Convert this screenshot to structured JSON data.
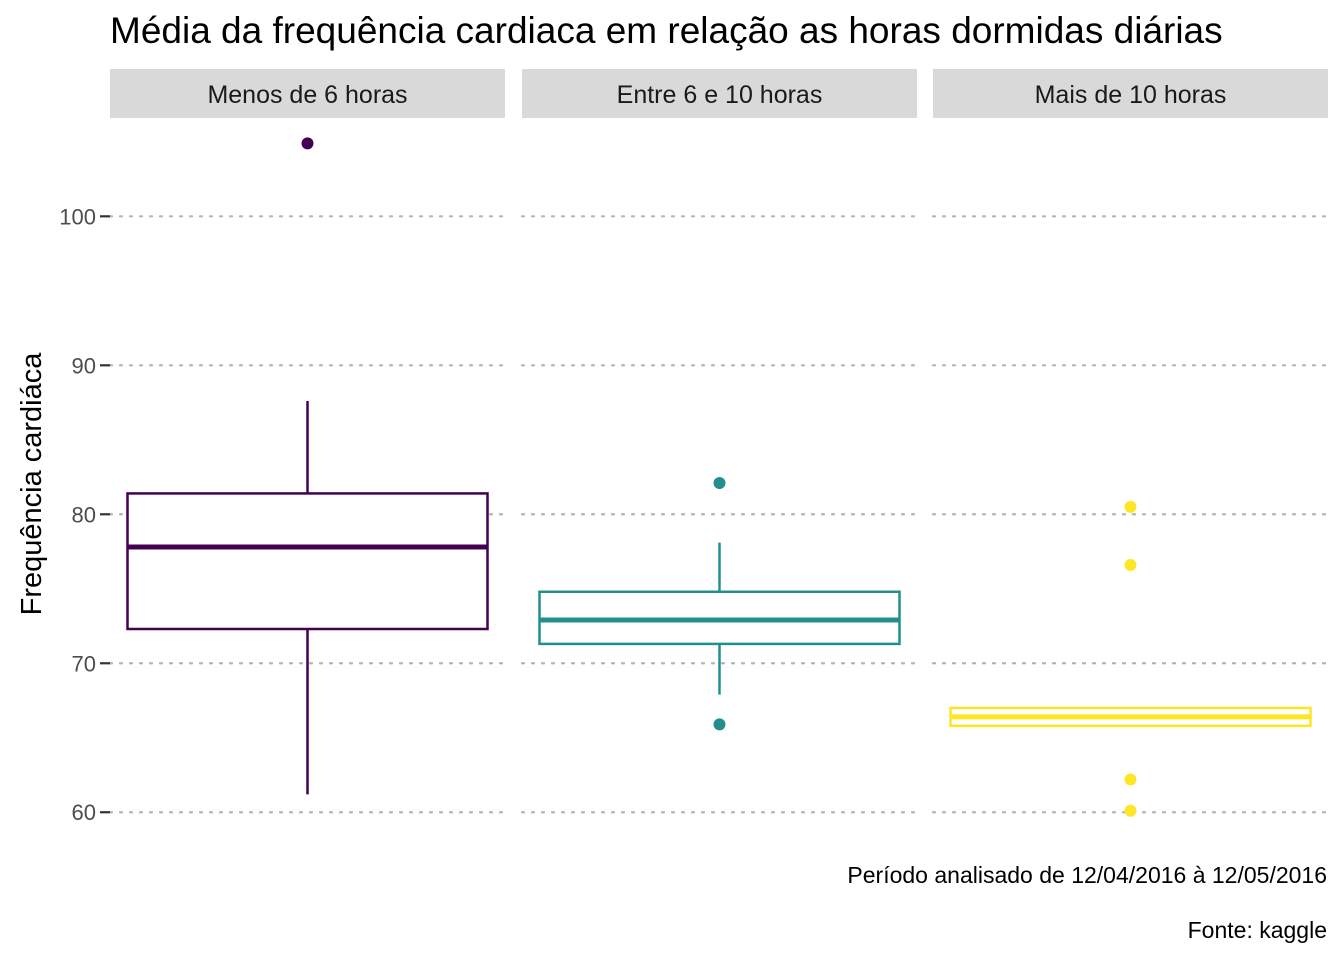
{
  "chart_data": {
    "type": "boxplot",
    "title": "Média da frequência cardiaca em relação as horas dormidas diárias",
    "ylabel": "Frequência cardiáca",
    "xlabel": "",
    "ylim": [
      57.6,
      106.6
    ],
    "yticks": [
      60,
      70,
      80,
      90,
      100
    ],
    "grid": "horizontal dotted",
    "captions": [
      "Período analisado de 12/04/2016 à 12/05/2016",
      "Fonte: kaggle"
    ],
    "panels": [
      {
        "label": "Menos de 6 horas",
        "color": "#440154",
        "whisker_low": 61.2,
        "q1": 72.3,
        "median": 77.8,
        "q3": 81.4,
        "whisker_high": 87.6,
        "outliers": [
          104.9
        ]
      },
      {
        "label": "Entre 6 e 10 horas",
        "color": "#21908C",
        "whisker_low": 67.9,
        "q1": 71.3,
        "median": 72.9,
        "q3": 74.8,
        "whisker_high": 78.1,
        "outliers": [
          82.1,
          65.9
        ]
      },
      {
        "label": "Mais de 10 horas",
        "color": "#FDE725",
        "whisker_low": 65.8,
        "q1": 65.8,
        "median": 66.4,
        "q3": 67.0,
        "whisker_high": 67.0,
        "outliers": [
          80.5,
          76.6,
          62.2,
          60.1
        ]
      }
    ]
  }
}
